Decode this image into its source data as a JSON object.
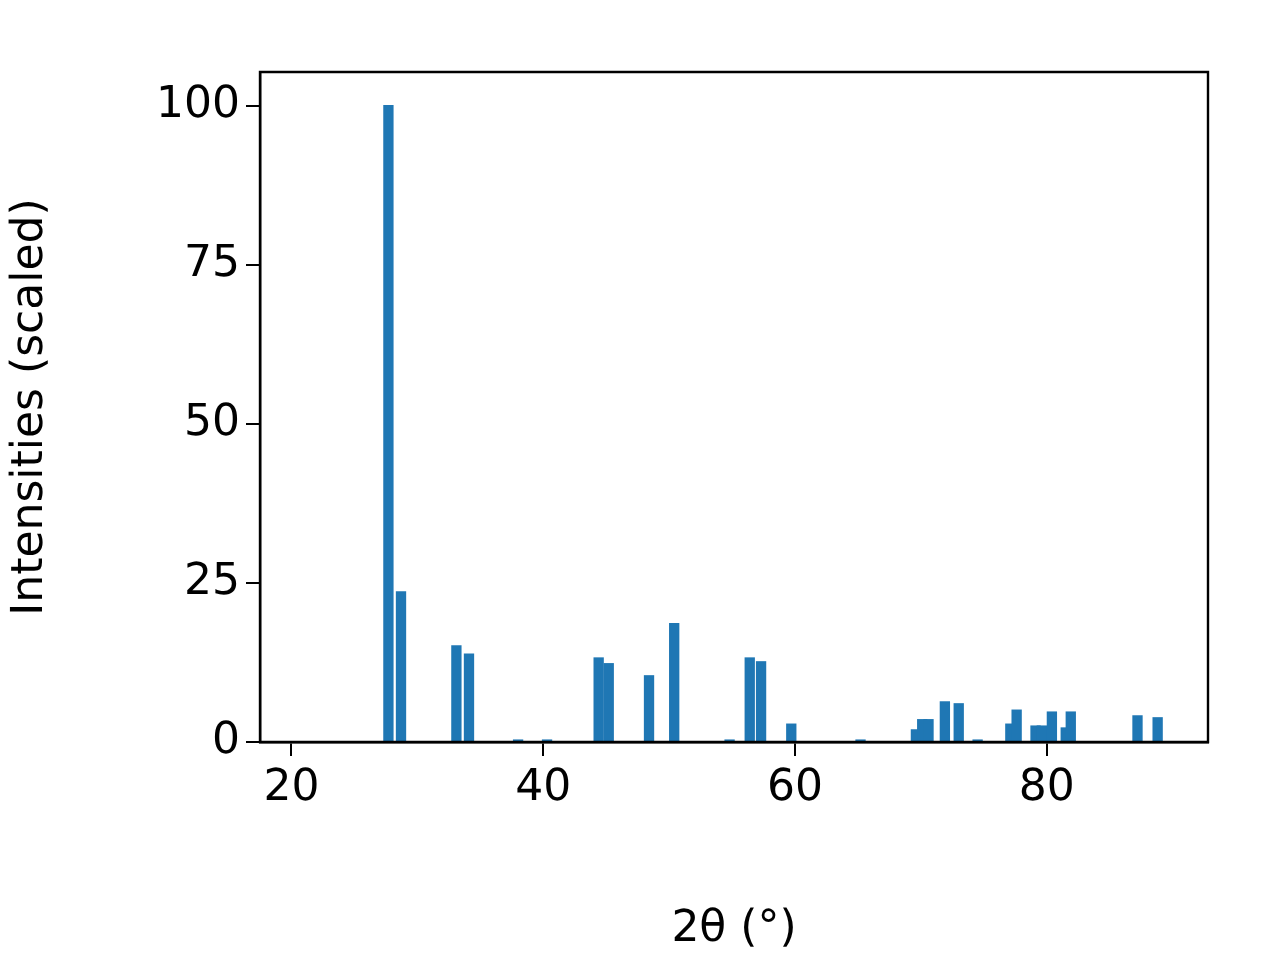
{
  "chart_data": {
    "type": "bar",
    "xlabel": "2θ (°)",
    "ylabel": "Intensities (scaled)",
    "x": [
      27.7,
      28.7,
      33.1,
      34.1,
      38.0,
      40.3,
      44.4,
      45.2,
      48.4,
      50.4,
      54.8,
      56.4,
      57.3,
      59.7,
      65.2,
      69.6,
      70.1,
      70.6,
      71.9,
      73.0,
      74.5,
      77.1,
      77.6,
      79.1,
      79.6,
      80.4,
      81.5,
      81.9,
      87.2,
      88.8
    ],
    "values": [
      100,
      23.6,
      15.1,
      13.8,
      0.3,
      0.3,
      13.2,
      12.3,
      10.4,
      18.6,
      0.3,
      13.2,
      12.6,
      2.8,
      0.3,
      1.9,
      3.5,
      3.5,
      6.3,
      6.0,
      0.3,
      2.8,
      5.0,
      2.5,
      2.5,
      4.7,
      2.2,
      4.7,
      4.1,
      3.8
    ],
    "color": "#1f77b4",
    "xlim": [
      17.5,
      92.8
    ],
    "xticks": [
      20,
      40,
      60,
      80
    ],
    "ylim": [
      0,
      105.3
    ],
    "yticks": [
      0,
      25,
      50,
      75,
      100
    ],
    "grid": false,
    "legend": false
  }
}
